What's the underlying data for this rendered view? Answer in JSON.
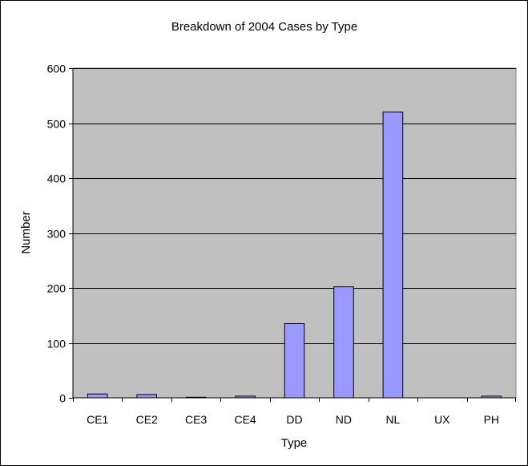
{
  "chart_data": {
    "type": "bar",
    "title": "Breakdown of 2004 Cases by Type",
    "xlabel": "Type",
    "ylabel": "Number",
    "categories": [
      "CE1",
      "CE2",
      "CE3",
      "CE4",
      "DD",
      "ND",
      "NL",
      "UX",
      "PH"
    ],
    "values": [
      7,
      6,
      1,
      3,
      135,
      202,
      520,
      0,
      3
    ],
    "ylim": [
      0,
      600
    ],
    "yticks": [
      0,
      100,
      200,
      300,
      400,
      500,
      600
    ],
    "grid": true,
    "legend": "none",
    "colors": {
      "bar_fill": "#9999ff",
      "bar_stroke": "#000000",
      "plot_background": "#c0c0c0",
      "gridline": "#000000"
    }
  }
}
